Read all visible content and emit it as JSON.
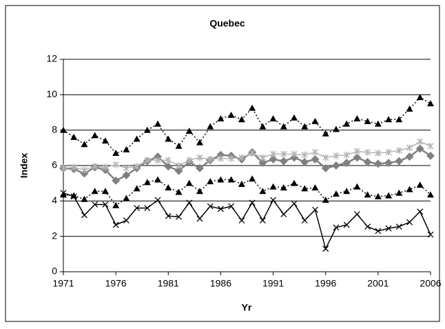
{
  "chart_data": {
    "type": "line",
    "title": "Quebec",
    "x_label": "Yr",
    "y_label": "Index",
    "x": [
      1971,
      1972,
      1973,
      1974,
      1975,
      1976,
      1977,
      1978,
      1979,
      1980,
      1981,
      1982,
      1983,
      1984,
      1985,
      1986,
      1987,
      1988,
      1989,
      1990,
      1991,
      1992,
      1993,
      1994,
      1995,
      1996,
      1997,
      1998,
      1999,
      2000,
      2001,
      2002,
      2003,
      2004,
      2005,
      2006
    ],
    "xlim": [
      1971,
      2006
    ],
    "xticks": [
      1971,
      1976,
      1981,
      1986,
      1991,
      1996,
      2001,
      2006
    ],
    "ylim": [
      0,
      12
    ],
    "yticks": [
      0,
      2,
      4,
      6,
      8,
      10,
      12
    ],
    "grid": true,
    "series": [
      {
        "color": "#000000",
        "marker": "triangle",
        "dashed": true,
        "values": [
          8.0,
          7.6,
          7.2,
          7.7,
          7.4,
          6.7,
          6.9,
          7.5,
          8.0,
          8.35,
          7.5,
          7.1,
          7.95,
          7.3,
          8.2,
          8.65,
          8.85,
          8.6,
          9.25,
          8.2,
          8.65,
          8.2,
          8.7,
          8.2,
          8.5,
          7.8,
          8.05,
          8.35,
          8.65,
          8.5,
          8.35,
          8.6,
          8.6,
          9.2,
          9.85,
          9.5
        ]
      },
      {
        "color": "#808080",
        "marker": "diamond",
        "dashed": false,
        "values": [
          5.85,
          5.8,
          5.55,
          5.9,
          5.75,
          5.15,
          5.45,
          5.85,
          6.25,
          6.5,
          5.95,
          5.7,
          6.2,
          5.85,
          6.3,
          6.6,
          6.55,
          6.35,
          6.75,
          6.15,
          6.35,
          6.25,
          6.45,
          6.2,
          6.35,
          5.85,
          6.0,
          6.15,
          6.45,
          6.2,
          6.1,
          6.15,
          6.25,
          6.5,
          6.95,
          6.55
        ]
      },
      {
        "color": "#b4b4b4",
        "marker": "star",
        "dashed": false,
        "values": [
          5.85,
          5.9,
          5.75,
          5.95,
          5.9,
          6.05,
          5.85,
          5.95,
          6.3,
          6.3,
          6.3,
          6.0,
          6.3,
          6.45,
          6.35,
          6.4,
          6.4,
          6.45,
          6.7,
          6.45,
          6.65,
          6.65,
          6.65,
          6.6,
          6.75,
          6.45,
          6.55,
          6.6,
          6.8,
          6.75,
          6.7,
          6.75,
          6.85,
          7.0,
          7.35,
          7.1
        ]
      },
      {
        "color": "#000000",
        "marker": "triangle",
        "dashed": true,
        "values": [
          4.35,
          4.3,
          4.1,
          4.55,
          4.55,
          3.75,
          4.15,
          4.7,
          5.05,
          5.2,
          4.75,
          4.5,
          5.0,
          4.55,
          5.1,
          5.2,
          5.2,
          4.95,
          5.25,
          4.55,
          4.8,
          4.75,
          5.0,
          4.7,
          4.75,
          4.05,
          4.4,
          4.55,
          4.8,
          4.35,
          4.25,
          4.3,
          4.45,
          4.65,
          4.9,
          4.35
        ]
      },
      {
        "color": "#000000",
        "marker": "x",
        "dashed": false,
        "values": [
          4.45,
          4.25,
          3.2,
          3.8,
          3.8,
          2.65,
          2.9,
          3.6,
          3.6,
          4.05,
          3.15,
          3.1,
          3.9,
          3.0,
          3.7,
          3.55,
          3.7,
          2.9,
          3.9,
          2.9,
          4.05,
          3.25,
          3.85,
          2.9,
          3.5,
          1.3,
          2.5,
          2.65,
          3.25,
          2.55,
          2.3,
          2.45,
          2.55,
          2.8,
          3.4,
          2.1
        ]
      }
    ]
  }
}
